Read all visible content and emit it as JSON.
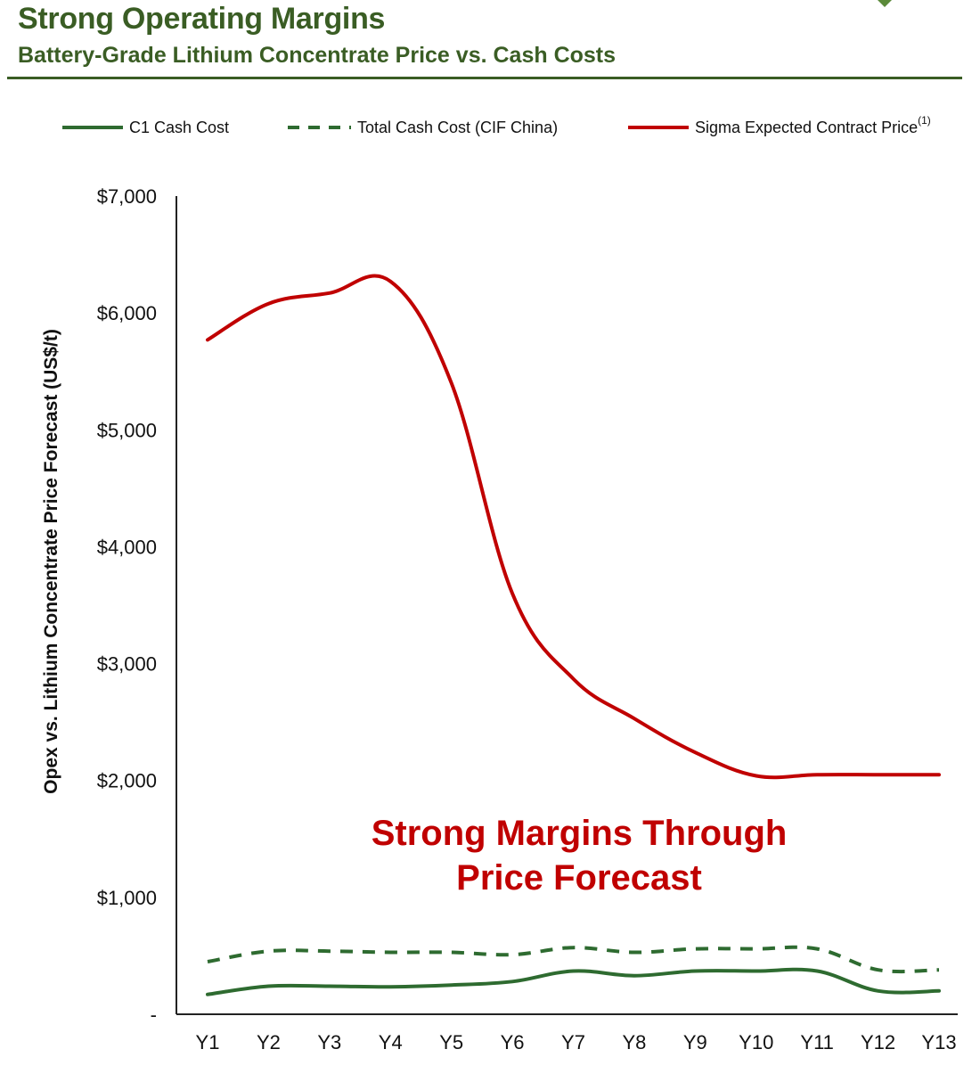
{
  "header": {
    "title": "Strong Operating Margins",
    "subtitle": "Battery-Grade Lithium Concentrate Price vs. Cash Costs"
  },
  "colors": {
    "brand_green": "#3a5d24",
    "c1": "#2e6b30",
    "total": "#2e6b30",
    "price": "#c00000",
    "axis": "#222222"
  },
  "chart_data": {
    "type": "line",
    "x": [
      "Y1",
      "Y2",
      "Y3",
      "Y4",
      "Y5",
      "Y6",
      "Y7",
      "Y8",
      "Y9",
      "Y10",
      "Y11",
      "Y12",
      "Y13"
    ],
    "series": [
      {
        "name": "C1 Cash Cost",
        "style": "solid",
        "color": "#2e6b30",
        "values": [
          170,
          240,
          240,
          235,
          250,
          280,
          370,
          330,
          370,
          370,
          370,
          200,
          200
        ]
      },
      {
        "name": "Total Cash Cost (CIF China)",
        "style": "dashed",
        "color": "#2e6b30",
        "values": [
          450,
          540,
          540,
          530,
          530,
          510,
          570,
          530,
          560,
          560,
          560,
          380,
          380
        ]
      },
      {
        "name": "Sigma Expected Contract Price",
        "name_footnote": "(1)",
        "style": "solid",
        "color": "#c00000",
        "values": [
          5770,
          6080,
          6170,
          6270,
          5400,
          3600,
          2870,
          2530,
          2240,
          2040,
          2050,
          2050,
          2050
        ]
      }
    ],
    "ylabel": "Opex vs. Lithium Concentrate Price Forecast (US$/t)",
    "xlabel": "",
    "ylim": [
      0,
      7000
    ],
    "yticks": [
      0,
      1000,
      2000,
      3000,
      4000,
      5000,
      6000,
      7000
    ],
    "ytick_labels": [
      "-",
      "$1,000",
      "$2,000",
      "$3,000",
      "$4,000",
      "$5,000",
      "$6,000",
      "$7,000"
    ],
    "grid": false,
    "legend_position": "top",
    "annotation": {
      "line1": "Strong Margins Through",
      "line2": "Price Forecast"
    }
  }
}
